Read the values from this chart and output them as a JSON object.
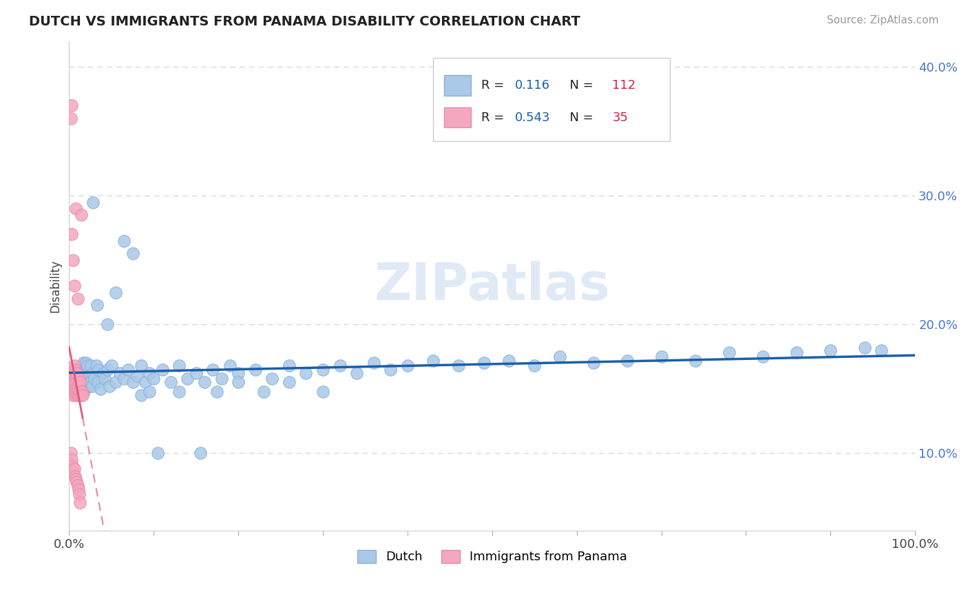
{
  "title": "DUTCH VS IMMIGRANTS FROM PANAMA DISABILITY CORRELATION CHART",
  "source": "Source: ZipAtlas.com",
  "ylabel": "Disability",
  "xlim": [
    0,
    1.0
  ],
  "ylim": [
    0.04,
    0.42
  ],
  "yticks": [
    0.1,
    0.2,
    0.3,
    0.4
  ],
  "ytick_labels": [
    "10.0%",
    "20.0%",
    "30.0%",
    "40.0%"
  ],
  "dutch_color": "#aac8e8",
  "dutch_edge_color": "#88b0d8",
  "panama_color": "#f4a8c0",
  "panama_edge_color": "#e888a8",
  "dutch_line_color": "#1a5fa8",
  "panama_line_color": "#e05878",
  "dutch_R": 0.116,
  "dutch_N": 112,
  "panama_R": 0.543,
  "panama_N": 35,
  "watermark": "ZIPatlas",
  "background_color": "#ffffff",
  "grid_color": "#c8d8e8",
  "dutch_scatter_x": [
    0.005,
    0.005,
    0.005,
    0.006,
    0.007,
    0.008,
    0.008,
    0.009,
    0.009,
    0.01,
    0.01,
    0.01,
    0.011,
    0.011,
    0.012,
    0.012,
    0.013,
    0.013,
    0.014,
    0.014,
    0.015,
    0.015,
    0.016,
    0.016,
    0.017,
    0.017,
    0.018,
    0.018,
    0.019,
    0.02,
    0.02,
    0.021,
    0.022,
    0.022,
    0.023,
    0.024,
    0.025,
    0.026,
    0.027,
    0.028,
    0.03,
    0.032,
    0.034,
    0.035,
    0.037,
    0.04,
    0.042,
    0.045,
    0.048,
    0.05,
    0.055,
    0.06,
    0.065,
    0.07,
    0.075,
    0.08,
    0.085,
    0.09,
    0.095,
    0.1,
    0.11,
    0.12,
    0.13,
    0.14,
    0.15,
    0.16,
    0.17,
    0.18,
    0.19,
    0.2,
    0.22,
    0.24,
    0.26,
    0.28,
    0.3,
    0.32,
    0.34,
    0.36,
    0.38,
    0.4,
    0.43,
    0.46,
    0.49,
    0.52,
    0.55,
    0.58,
    0.62,
    0.66,
    0.7,
    0.74,
    0.78,
    0.82,
    0.86,
    0.9,
    0.94,
    0.96,
    0.033,
    0.028,
    0.045,
    0.055,
    0.065,
    0.075,
    0.085,
    0.095,
    0.105,
    0.13,
    0.155,
    0.175,
    0.2,
    0.23,
    0.26,
    0.3
  ],
  "dutch_scatter_y": [
    0.16,
    0.155,
    0.165,
    0.158,
    0.162,
    0.155,
    0.165,
    0.15,
    0.158,
    0.155,
    0.16,
    0.165,
    0.152,
    0.162,
    0.155,
    0.163,
    0.15,
    0.16,
    0.155,
    0.162,
    0.15,
    0.168,
    0.155,
    0.163,
    0.152,
    0.17,
    0.148,
    0.163,
    0.155,
    0.162,
    0.17,
    0.158,
    0.155,
    0.168,
    0.152,
    0.16,
    0.155,
    0.168,
    0.152,
    0.162,
    0.158,
    0.168,
    0.155,
    0.165,
    0.15,
    0.162,
    0.158,
    0.165,
    0.152,
    0.168,
    0.155,
    0.162,
    0.158,
    0.165,
    0.155,
    0.16,
    0.168,
    0.155,
    0.162,
    0.158,
    0.165,
    0.155,
    0.168,
    0.158,
    0.162,
    0.155,
    0.165,
    0.158,
    0.168,
    0.162,
    0.165,
    0.158,
    0.168,
    0.162,
    0.165,
    0.168,
    0.162,
    0.17,
    0.165,
    0.168,
    0.172,
    0.168,
    0.17,
    0.172,
    0.168,
    0.175,
    0.17,
    0.172,
    0.175,
    0.172,
    0.178,
    0.175,
    0.178,
    0.18,
    0.182,
    0.18,
    0.215,
    0.295,
    0.2,
    0.225,
    0.265,
    0.255,
    0.145,
    0.148,
    0.1,
    0.148,
    0.1,
    0.148,
    0.155,
    0.148,
    0.155,
    0.148
  ],
  "panama_scatter_x": [
    0.002,
    0.002,
    0.003,
    0.003,
    0.003,
    0.004,
    0.004,
    0.004,
    0.005,
    0.005,
    0.005,
    0.005,
    0.006,
    0.006,
    0.006,
    0.007,
    0.007,
    0.007,
    0.008,
    0.008,
    0.008,
    0.009,
    0.009,
    0.009,
    0.01,
    0.01,
    0.011,
    0.011,
    0.012,
    0.012,
    0.013,
    0.013,
    0.014,
    0.015,
    0.016
  ],
  "panama_scatter_y": [
    0.155,
    0.148,
    0.16,
    0.152,
    0.165,
    0.155,
    0.16,
    0.148,
    0.152,
    0.158,
    0.145,
    0.163,
    0.148,
    0.155,
    0.168,
    0.15,
    0.158,
    0.165,
    0.145,
    0.152,
    0.16,
    0.148,
    0.155,
    0.162,
    0.145,
    0.152,
    0.148,
    0.155,
    0.145,
    0.158,
    0.148,
    0.155,
    0.145,
    0.148,
    0.145
  ],
  "panama_high_x": [
    0.002,
    0.003,
    0.003,
    0.005,
    0.006,
    0.008,
    0.01,
    0.014
  ],
  "panama_high_y": [
    0.36,
    0.37,
    0.27,
    0.25,
    0.23,
    0.29,
    0.22,
    0.285
  ],
  "panama_low_x": [
    0.002,
    0.003,
    0.004,
    0.005,
    0.006,
    0.007,
    0.008,
    0.009,
    0.01,
    0.011,
    0.012,
    0.013
  ],
  "panama_low_y": [
    0.1,
    0.095,
    0.09,
    0.085,
    0.088,
    0.082,
    0.08,
    0.078,
    0.075,
    0.072,
    0.068,
    0.062
  ]
}
